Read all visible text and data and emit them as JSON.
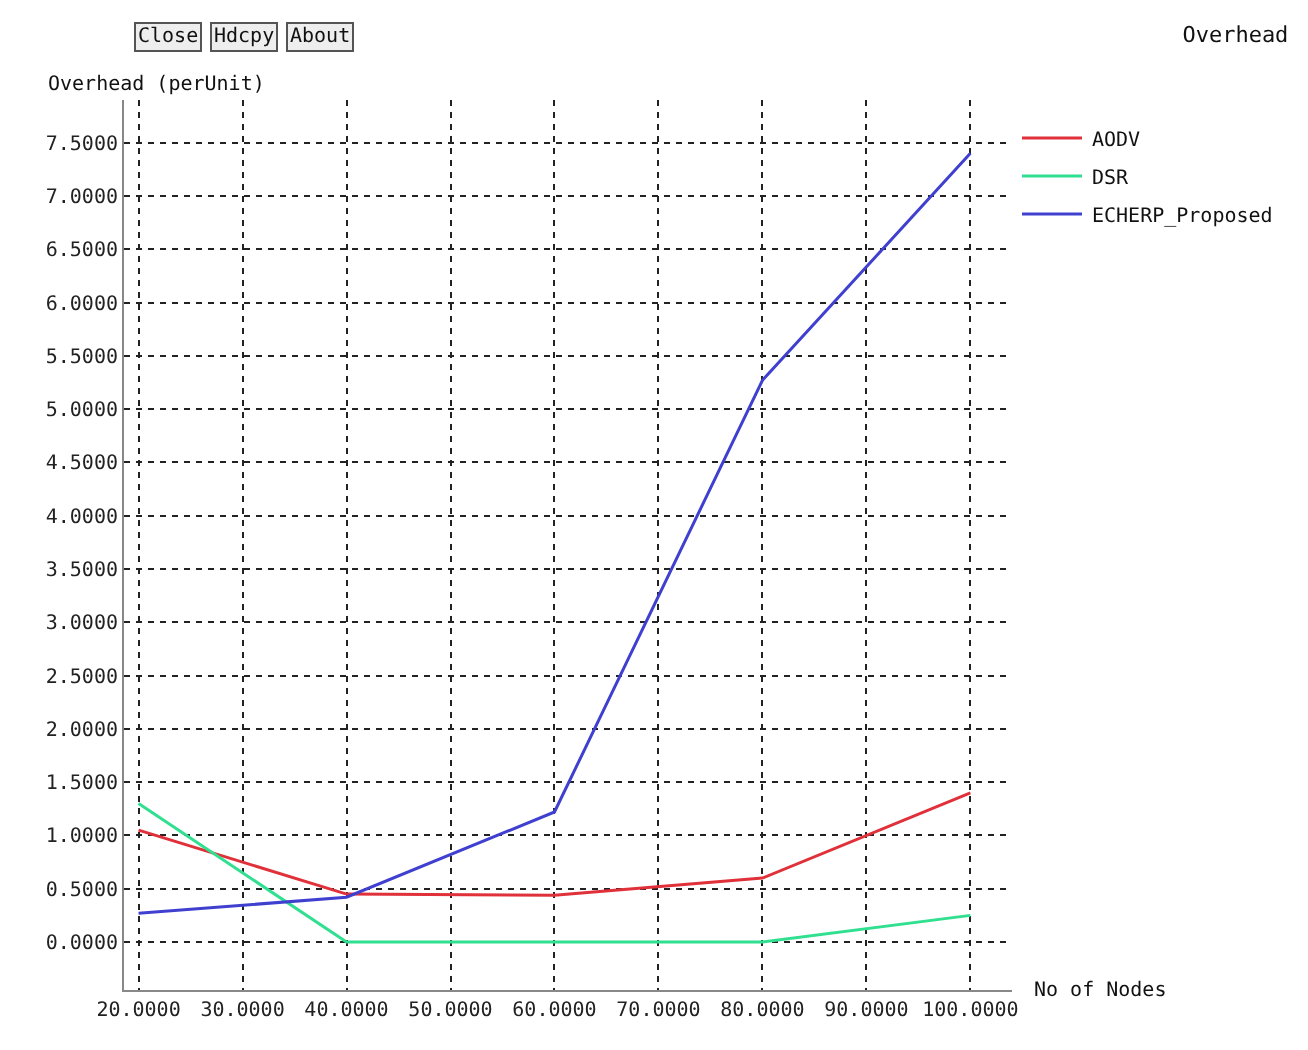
{
  "chart_data": {
    "type": "line",
    "title": "Overhead",
    "xlabel": "No of Nodes",
    "ylabel": "Overhead (perUnit)",
    "annotations": [
      "Close",
      "Hdcpy",
      "About"
    ],
    "x": [
      20,
      40,
      60,
      80,
      100
    ],
    "series": [
      {
        "name": "AODV",
        "color": "#e0303a",
        "values": [
          1.05,
          0.45,
          0.44,
          0.6,
          1.4
        ]
      },
      {
        "name": "DSR",
        "color": "#30e090",
        "values": [
          1.3,
          0.0,
          0.0,
          0.0,
          0.25
        ]
      },
      {
        "name": "ECHERP_Proposed",
        "color": "#4040d0",
        "values": [
          0.27,
          0.42,
          1.22,
          5.27,
          7.4
        ]
      }
    ],
    "xlim": [
      18.6,
      104
    ],
    "ylim": [
      -0.45,
      7.9
    ],
    "xticks": [
      {
        "value": 20,
        "label": "20.0000"
      },
      {
        "value": 30,
        "label": "30.0000"
      },
      {
        "value": 40,
        "label": "40.0000"
      },
      {
        "value": 50,
        "label": "50.0000"
      },
      {
        "value": 60,
        "label": "60.0000"
      },
      {
        "value": 70,
        "label": "70.0000"
      },
      {
        "value": 80,
        "label": "80.0000"
      },
      {
        "value": 90,
        "label": "90.0000"
      },
      {
        "value": 100,
        "label": "100.0000"
      }
    ],
    "yticks": [
      {
        "value": 0,
        "label": "0.0000"
      },
      {
        "value": 0.5,
        "label": "0.5000"
      },
      {
        "value": 1,
        "label": "1.0000"
      },
      {
        "value": 1.5,
        "label": "1.5000"
      },
      {
        "value": 2,
        "label": "2.0000"
      },
      {
        "value": 2.5,
        "label": "2.5000"
      },
      {
        "value": 3,
        "label": "3.0000"
      },
      {
        "value": 3.5,
        "label": "3.5000"
      },
      {
        "value": 4,
        "label": "4.0000"
      },
      {
        "value": 4.5,
        "label": "4.5000"
      },
      {
        "value": 5,
        "label": "5.0000"
      },
      {
        "value": 5.5,
        "label": "5.5000"
      },
      {
        "value": 6,
        "label": "6.0000"
      },
      {
        "value": 6.5,
        "label": "6.5000"
      },
      {
        "value": 7,
        "label": "7.0000"
      },
      {
        "value": 7.5,
        "label": "7.5000"
      }
    ],
    "grid": true,
    "legend": "top right",
    "line_style": "solid"
  }
}
